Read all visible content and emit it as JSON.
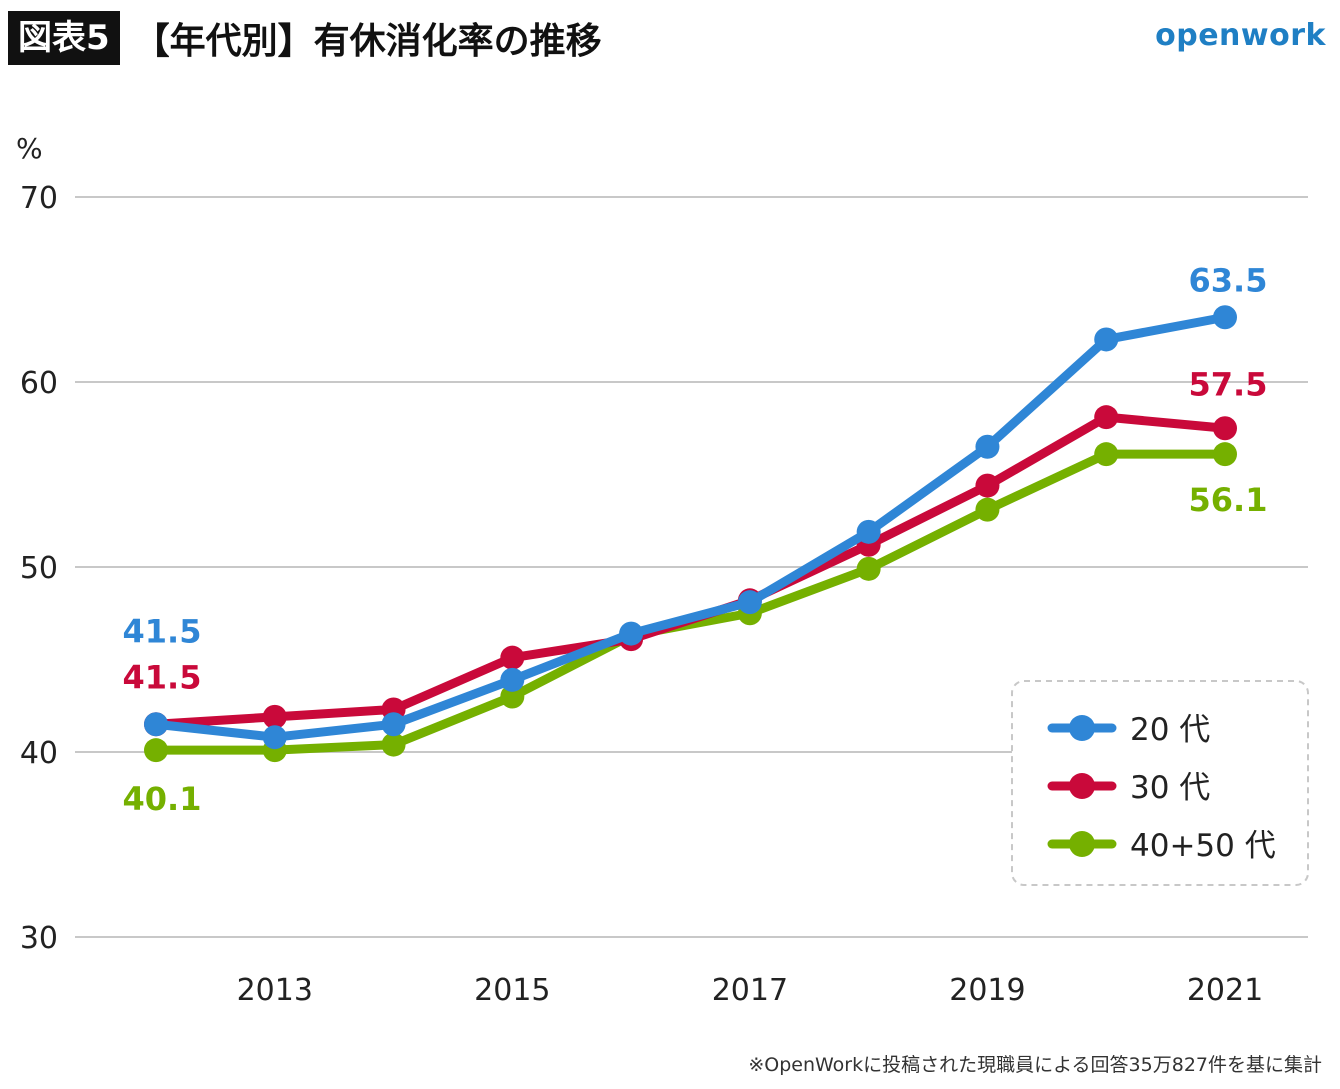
{
  "header": {
    "badge": "図表5",
    "title": "【年代別】有休消化率の推移",
    "brand": "openwork"
  },
  "footnote": "※OpenWorkに投稿された現職員による回答35万827件を基に集計",
  "chart_data": {
    "type": "line",
    "unit_label": "%",
    "x": [
      2012,
      2013,
      2014,
      2015,
      2016,
      2017,
      2018,
      2019,
      2020,
      2021
    ],
    "x_tick_labels": [
      "2013",
      "2015",
      "2017",
      "2019",
      "2021"
    ],
    "x_tick_values": [
      2013,
      2015,
      2017,
      2019,
      2021
    ],
    "ylim": [
      30,
      70
    ],
    "y_ticks": [
      30,
      40,
      50,
      60,
      70
    ],
    "grid": true,
    "legend_position": "bottom-right",
    "series": [
      {
        "name": "20 代",
        "color": "#2f86d6",
        "values": [
          41.5,
          40.8,
          41.5,
          43.9,
          46.4,
          48.1,
          51.9,
          56.5,
          62.3,
          63.5
        ]
      },
      {
        "name": "30 代",
        "color": "#c9093a",
        "values": [
          41.5,
          41.9,
          42.3,
          45.1,
          46.1,
          48.2,
          51.2,
          54.4,
          58.1,
          57.5
        ]
      },
      {
        "name": "40+50 代",
        "color": "#75b000",
        "values": [
          40.1,
          40.1,
          40.4,
          43.0,
          46.3,
          47.5,
          49.9,
          53.1,
          56.1,
          56.1
        ]
      }
    ],
    "data_labels": [
      {
        "series": 0,
        "point": 0,
        "text": "41.5",
        "color": "#2f86d6"
      },
      {
        "series": 1,
        "point": 0,
        "text": "41.5",
        "color": "#c9093a"
      },
      {
        "series": 2,
        "point": 0,
        "text": "40.1",
        "color": "#75b000"
      },
      {
        "series": 0,
        "point": 9,
        "text": "63.5",
        "color": "#2f86d6"
      },
      {
        "series": 1,
        "point": 9,
        "text": "57.5",
        "color": "#c9093a"
      },
      {
        "series": 2,
        "point": 9,
        "text": "56.1",
        "color": "#75b000"
      }
    ]
  }
}
